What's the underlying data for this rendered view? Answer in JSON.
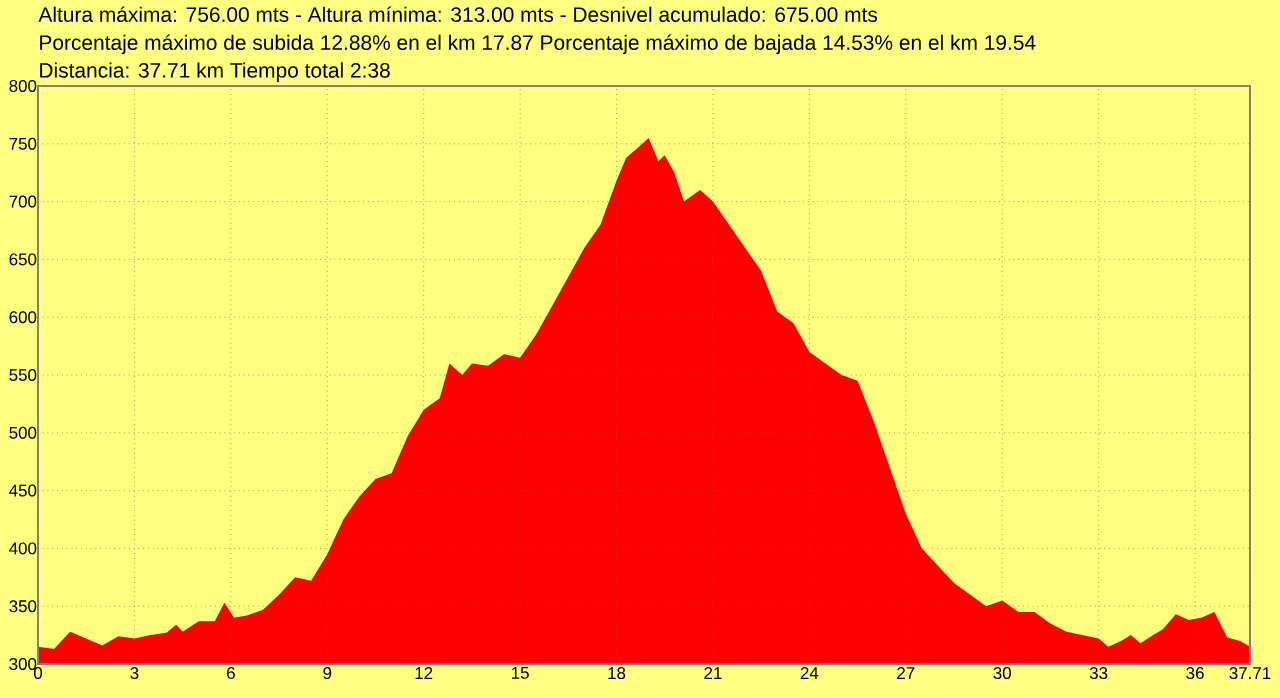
{
  "chart_data": {
    "type": "area",
    "title": "Altura máxima: 756.00 mts - Altura mínima: 313.00 mts - Desnivel acumulado: 675.00 mts",
    "subtitle": "Porcentaje máximo de subida 12.88%  en el km 17.87     Porcentaje máximo de bajada 14.53%  en el km 19.54",
    "annotations": [
      "Distancia: 37.71 km  Tiempo total 2:38"
    ],
    "x": [
      0,
      0.5,
      0.8,
      1.0,
      1.5,
      2.0,
      2.5,
      3,
      3.5,
      4,
      4.3,
      4.5,
      5,
      5.5,
      5.8,
      6.1,
      6.5,
      7,
      7.5,
      8,
      8.5,
      9,
      9.5,
      10,
      10.5,
      11,
      11.5,
      12,
      12.5,
      12.8,
      13.2,
      13.5,
      14,
      14.5,
      15,
      15.5,
      16,
      16.5,
      17,
      17.5,
      18,
      18.3,
      18.6,
      19,
      19.3,
      19.5,
      19.8,
      20.1,
      20.6,
      21,
      21.5,
      22,
      22.5,
      23,
      23.5,
      24,
      24.5,
      25,
      25.5,
      26,
      26.5,
      27,
      27.5,
      28,
      28.5,
      29,
      29.5,
      30,
      30.5,
      31,
      31.5,
      32,
      32.5,
      33,
      33.3,
      33.7,
      34,
      34.3,
      34.7,
      35,
      35.4,
      35.8,
      36.2,
      36.6,
      37,
      37.4,
      37.71
    ],
    "values": [
      315,
      313,
      322,
      328,
      322,
      316,
      324,
      322,
      325,
      327,
      334,
      328,
      337,
      337,
      353,
      340,
      342,
      347,
      360,
      375,
      372,
      395,
      425,
      445,
      460,
      465,
      497,
      520,
      530,
      560,
      550,
      560,
      558,
      568,
      565,
      585,
      610,
      635,
      660,
      680,
      718,
      738,
      745,
      755,
      735,
      740,
      725,
      700,
      710,
      700,
      680,
      660,
      640,
      605,
      595,
      570,
      560,
      550,
      545,
      510,
      470,
      430,
      400,
      385,
      370,
      360,
      350,
      355,
      345,
      345,
      335,
      328,
      325,
      322,
      315,
      320,
      325,
      318,
      325,
      330,
      343,
      338,
      340,
      345,
      323,
      320,
      315
    ],
    "color": "#ff0000",
    "xlim": [
      0,
      37.71
    ],
    "ylim": [
      300,
      800
    ],
    "xticks": [
      0,
      3,
      6,
      9,
      12,
      15,
      18,
      21,
      24,
      27,
      30,
      33,
      36,
      37.71
    ],
    "yticks": [
      300,
      350,
      400,
      450,
      500,
      550,
      600,
      650,
      700,
      750,
      800
    ],
    "grid": true
  }
}
